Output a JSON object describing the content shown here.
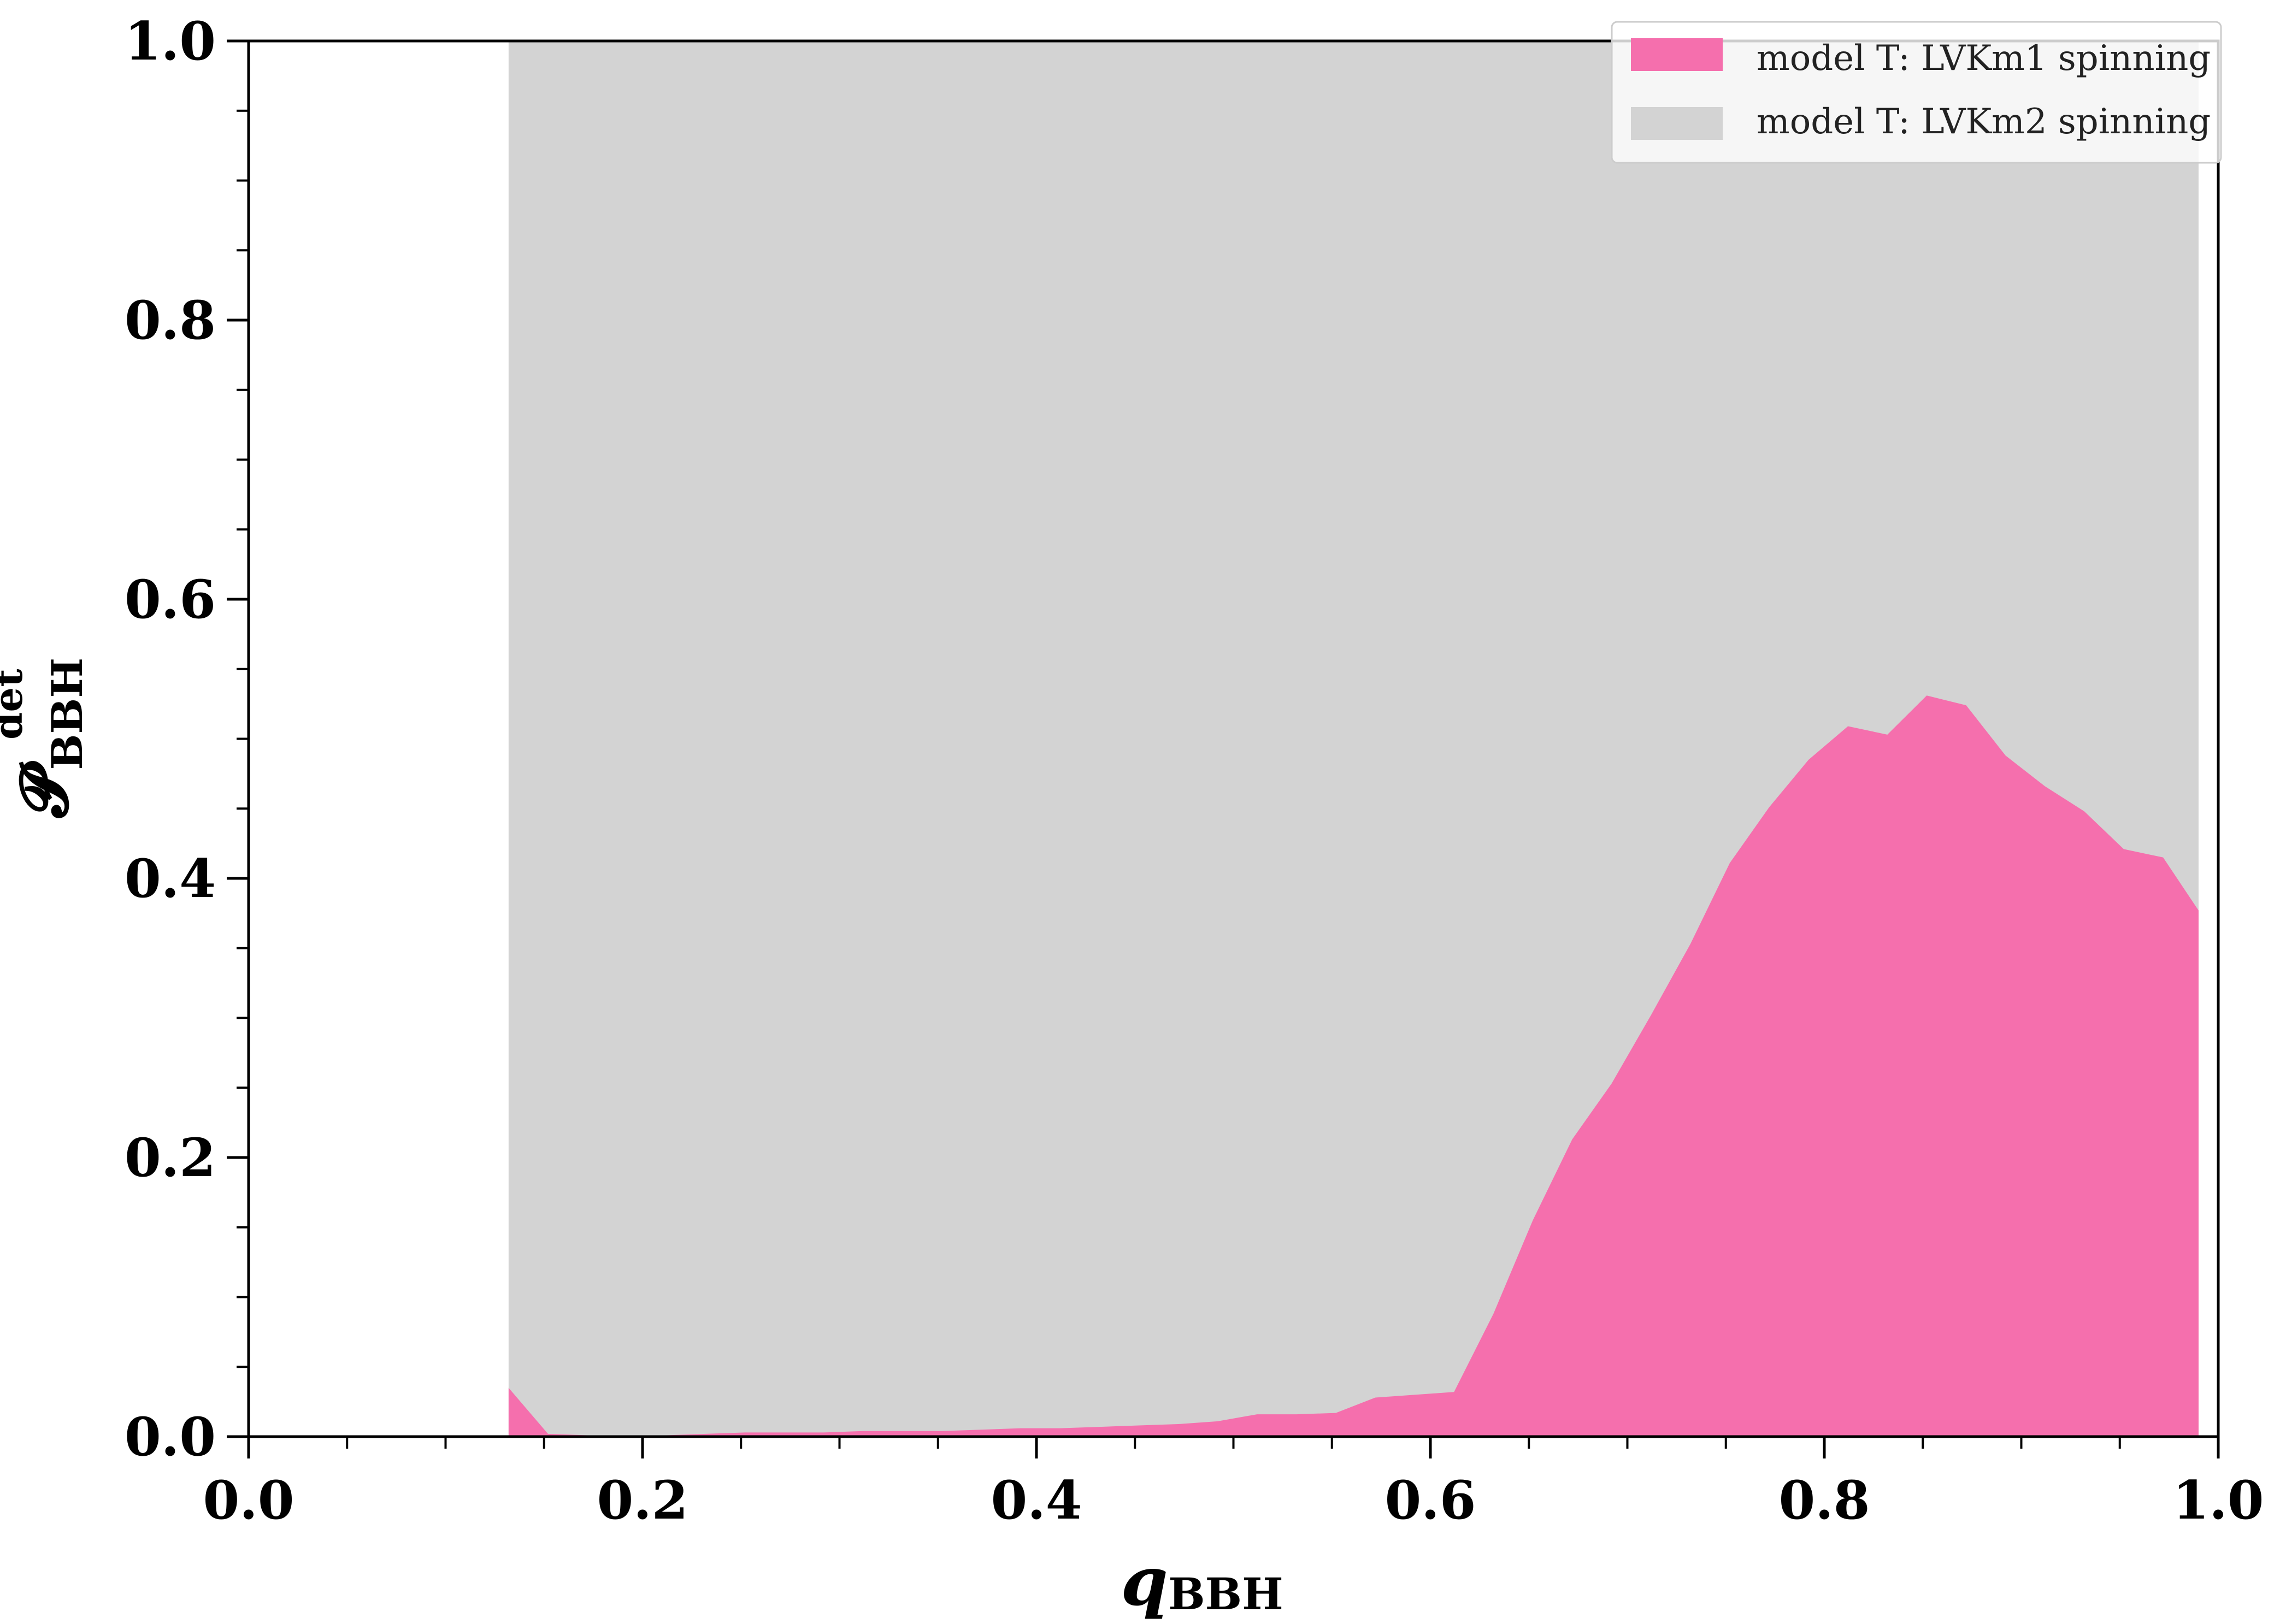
{
  "chart_data": {
    "type": "area",
    "xlabel": {
      "main": "q",
      "sub": "BBH"
    },
    "ylabel": {
      "main": "𝓟",
      "sub": "BBH",
      "sup": "det"
    },
    "xlim": [
      0.0,
      1.0
    ],
    "ylim": [
      0.0,
      1.0
    ],
    "xticks": [
      0.0,
      0.2,
      0.4,
      0.6,
      0.8,
      1.0
    ],
    "yticks": [
      0.0,
      0.2,
      0.4,
      0.6,
      0.8,
      1.0
    ],
    "xtick_labels": [
      "0.0",
      "0.2",
      "0.4",
      "0.6",
      "0.8",
      "1.0"
    ],
    "ytick_labels": [
      "0.0",
      "0.2",
      "0.4",
      "0.6",
      "0.8",
      "1.0"
    ],
    "grid": false,
    "legend_position": "top-right",
    "series": [
      {
        "name": "model T: LVKm2 spinning",
        "color": "#d3d3d3",
        "x": [
          0.132,
          0.99
        ],
        "y": [
          1.0,
          1.0
        ]
      },
      {
        "name": "model T: LVKm1 spinning",
        "color": "#f56fad",
        "x": [
          0.132,
          0.152,
          0.172,
          0.192,
          0.212,
          0.232,
          0.252,
          0.272,
          0.292,
          0.312,
          0.332,
          0.352,
          0.372,
          0.392,
          0.412,
          0.432,
          0.452,
          0.472,
          0.492,
          0.512,
          0.532,
          0.552,
          0.572,
          0.592,
          0.612,
          0.632,
          0.652,
          0.672,
          0.692,
          0.712,
          0.732,
          0.752,
          0.772,
          0.792,
          0.812,
          0.832,
          0.852,
          0.872,
          0.892,
          0.912,
          0.932,
          0.952,
          0.972,
          0.99
        ],
        "y": [
          0.035,
          0.002,
          0.001,
          0.001,
          0.001,
          0.002,
          0.003,
          0.003,
          0.003,
          0.004,
          0.004,
          0.004,
          0.005,
          0.006,
          0.006,
          0.007,
          0.008,
          0.009,
          0.011,
          0.016,
          0.016,
          0.017,
          0.028,
          0.03,
          0.032,
          0.088,
          0.155,
          0.213,
          0.253,
          0.302,
          0.353,
          0.411,
          0.451,
          0.485,
          0.509,
          0.503,
          0.531,
          0.524,
          0.488,
          0.466,
          0.448,
          0.421,
          0.415,
          0.377
        ]
      }
    ]
  }
}
